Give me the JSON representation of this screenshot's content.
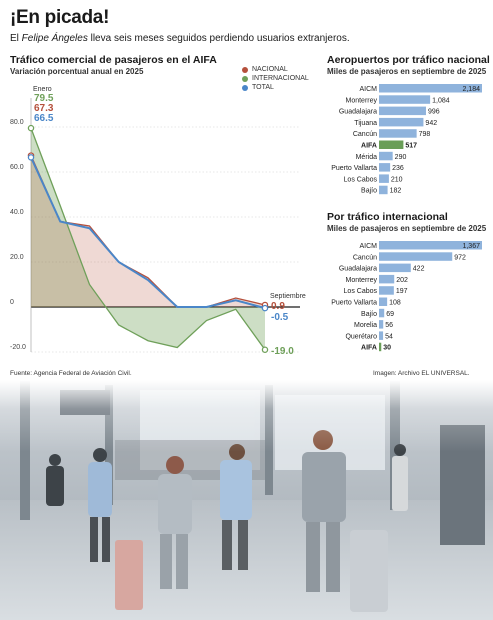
{
  "header": {
    "title": "¡En picada!",
    "subtitle_pre": "El ",
    "subtitle_em": "Felipe Ángeles",
    "subtitle_post": " lleva seis meses seguidos perdiendo usuarios extranjeros."
  },
  "colors": {
    "nacional": "#b5503c",
    "internacional": "#6fa05a",
    "total": "#4a86c8",
    "bar": "#8fb3dc",
    "highlight": "#6a9e58"
  },
  "chart_data": [
    {
      "type": "line",
      "title": "Tráfico comercial de pasajeros en el AIFA",
      "subtitle": "Variación porcentual anual en 2025",
      "ylim": [
        -20,
        80
      ],
      "yticks": [
        "80.0",
        "60.0",
        "40.0",
        "20.0",
        "0",
        "-20.0"
      ],
      "x_start_label": "Enero",
      "x_end_label": "Septiembre",
      "series": [
        {
          "name": "NACIONAL",
          "values": [
            67.3,
            38,
            36,
            20,
            13,
            0,
            0,
            4,
            0.9
          ],
          "start_label": "67.3",
          "end_label": "0.9"
        },
        {
          "name": "INTERNACIONAL",
          "values": [
            79.5,
            45,
            10,
            -8,
            -15,
            -18,
            -6,
            -1,
            -19.0
          ],
          "start_label": "79.5",
          "end_label": "-19.0"
        },
        {
          "name": "TOTAL",
          "values": [
            66.5,
            38,
            35,
            20,
            12,
            0,
            0,
            3,
            -0.5
          ],
          "start_label": "66.5",
          "end_label": "-0.5"
        }
      ]
    },
    {
      "type": "bar",
      "title": "Aeropuertos por tráfico nacional",
      "subtitle": "Miles de pasajeros en septiembre de 2025",
      "categories": [
        "AICM",
        "Monterrey",
        "Guadalajara",
        "Tijuana",
        "Cancún",
        "AIFA",
        "Mérida",
        "Puerto Vallarta",
        "Los Cabos",
        "Bajío"
      ],
      "values": [
        2184,
        1084,
        996,
        942,
        798,
        517,
        290,
        236,
        210,
        182
      ],
      "value_labels": [
        "2,184",
        "1,084",
        "996",
        "942",
        "798",
        "517",
        "290",
        "236",
        "210",
        "182"
      ],
      "highlight": "AIFA"
    },
    {
      "type": "bar",
      "title": "Por tráfico internacional",
      "subtitle": "Miles de pasajeros en septiembre de 2025",
      "categories": [
        "AICM",
        "Cancún",
        "Guadalajara",
        "Monterrey",
        "Los Cabos",
        "Puerto Vallarta",
        "Bajío",
        "Morelia",
        "Querétaro",
        "AIFA"
      ],
      "values": [
        1367,
        972,
        422,
        202,
        197,
        108,
        69,
        56,
        54,
        30
      ],
      "value_labels": [
        "1,367",
        "972",
        "422",
        "202",
        "197",
        "108",
        "69",
        "56",
        "54",
        "30"
      ],
      "highlight": "AIFA"
    }
  ],
  "footer": {
    "source": "Fuente: Agencia Federal de Aviación Civil.",
    "credit": "Imagen: Archivo EL UNIVERSAL."
  }
}
